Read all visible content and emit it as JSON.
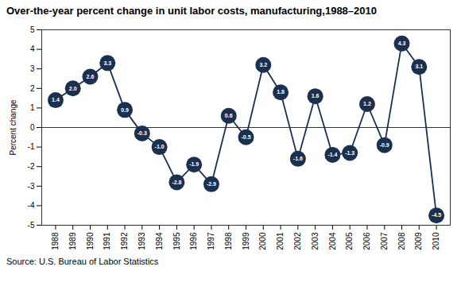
{
  "chart_data": {
    "type": "line",
    "title": "Over-the-year percent change in unit labor costs, manufacturing,1988–2010",
    "ylabel": "Percent change",
    "source": "Source: U.S. Bureau of Labor Statistics",
    "x": [
      1988,
      1989,
      1990,
      1991,
      1992,
      1993,
      1994,
      1995,
      1996,
      1997,
      1998,
      1999,
      2000,
      2001,
      2002,
      2003,
      2004,
      2005,
      2006,
      2007,
      2008,
      2009,
      2010
    ],
    "values": [
      1.4,
      2.0,
      2.6,
      3.3,
      0.9,
      -0.3,
      -1.0,
      -2.8,
      -1.9,
      -2.9,
      0.6,
      -0.5,
      3.2,
      1.8,
      -1.6,
      1.6,
      -1.4,
      -1.3,
      1.2,
      -0.9,
      4.3,
      3.1,
      -4.5
    ],
    "value_labels": [
      "1.4",
      "2.0",
      "2.6",
      "3.3",
      "0.9",
      "-0.3",
      "-1.0",
      "-2.8",
      "-1.9",
      "-2.9",
      "0.6",
      "-0.5",
      "3.2",
      "1.8",
      "-1.6",
      "1.6",
      "-1.4",
      "-1.3",
      "1.2",
      "-0.9",
      "4.3",
      "3.1",
      "-4.5"
    ],
    "data_labels": true,
    "color": "#1b2f4e",
    "marker": "oval",
    "xlim": [
      1987.2,
      2010.8
    ],
    "xticks": [
      1988,
      1989,
      1990,
      1991,
      1992,
      1993,
      1994,
      1995,
      1996,
      1997,
      1998,
      1999,
      2000,
      2001,
      2002,
      2003,
      2004,
      2005,
      2006,
      2007,
      2008,
      2009,
      2010
    ],
    "ylim": [
      -5,
      5
    ],
    "yticks": [
      -5,
      -4,
      -3,
      -2,
      -1,
      0,
      1,
      2,
      3,
      4,
      5
    ],
    "grid": false
  }
}
